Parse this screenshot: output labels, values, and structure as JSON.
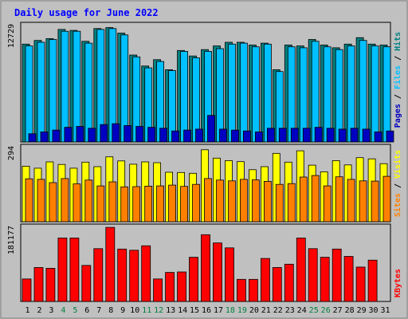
{
  "chart_data": [
    {
      "type": "bar",
      "title": "Daily usage for June 2022",
      "x": [
        "1",
        "2",
        "3",
        "4",
        "5",
        "6",
        "7",
        "8",
        "9",
        "10",
        "11",
        "12",
        "13",
        "14",
        "15",
        "16",
        "17",
        "18",
        "19",
        "20",
        "21",
        "22",
        "23",
        "24",
        "25",
        "26",
        "27",
        "28",
        "29",
        "30",
        "31"
      ],
      "weekend_days": [
        "4",
        "5",
        "11",
        "12",
        "18",
        "19",
        "25",
        "26"
      ],
      "y_tick_label": "12729",
      "ymax": 12729,
      "series": [
        {
          "name": "Hits",
          "color": "#008080",
          "values": [
            10700,
            11100,
            11300,
            12300,
            12200,
            11000,
            12400,
            12500,
            11900,
            9500,
            8300,
            9000,
            7900,
            10000,
            9400,
            10100,
            10500,
            10900,
            10900,
            10600,
            10800,
            7900,
            10600,
            10500,
            11200,
            10600,
            10300,
            10700,
            11400,
            10700,
            10600
          ]
        },
        {
          "name": "Files",
          "color": "#00c0ff",
          "values": [
            10500,
            10900,
            11200,
            12100,
            12100,
            10800,
            12300,
            12400,
            11700,
            9300,
            8100,
            8800,
            7800,
            9900,
            9200,
            9900,
            10200,
            10700,
            10800,
            10400,
            10700,
            7700,
            10400,
            10300,
            11000,
            10400,
            10100,
            10500,
            11100,
            10500,
            10400
          ]
        },
        {
          "name": "Pages",
          "color": "#0000c0",
          "values": [
            900,
            1100,
            1300,
            1600,
            1700,
            1500,
            1900,
            2000,
            1800,
            1700,
            1600,
            1500,
            1200,
            1300,
            1400,
            2900,
            1400,
            1300,
            1200,
            1100,
            1500,
            1500,
            1500,
            1500,
            1600,
            1500,
            1400,
            1500,
            1400,
            1100,
            1200
          ]
        }
      ]
    },
    {
      "type": "bar",
      "x": [
        "1",
        "2",
        "3",
        "4",
        "5",
        "6",
        "7",
        "8",
        "9",
        "10",
        "11",
        "12",
        "13",
        "14",
        "15",
        "16",
        "17",
        "18",
        "19",
        "20",
        "21",
        "22",
        "23",
        "24",
        "25",
        "26",
        "27",
        "28",
        "29",
        "30",
        "31"
      ],
      "y_tick_label": "294",
      "ymax": 294,
      "series": [
        {
          "name": "Visits",
          "color": "#ffff00",
          "values": [
            220,
            212,
            237,
            227,
            212,
            236,
            218,
            257,
            241,
            228,
            237,
            234,
            196,
            195,
            192,
            285,
            252,
            242,
            238,
            206,
            218,
            271,
            236,
            281,
            224,
            198,
            242,
            225,
            254,
            249,
            230
          ]
        },
        {
          "name": "Sites",
          "color": "#ff8000",
          "values": [
            170,
            168,
            155,
            171,
            150,
            165,
            142,
            158,
            138,
            139,
            141,
            142,
            145,
            140,
            148,
            171,
            165,
            162,
            168,
            166,
            160,
            148,
            151,
            177,
            183,
            142,
            178,
            168,
            162,
            161,
            180
          ]
        }
      ]
    },
    {
      "type": "bar",
      "x": [
        "1",
        "2",
        "3",
        "4",
        "5",
        "6",
        "7",
        "8",
        "9",
        "10",
        "11",
        "12",
        "13",
        "14",
        "15",
        "16",
        "17",
        "18",
        "19",
        "20",
        "21",
        "22",
        "23",
        "24",
        "25",
        "26",
        "27",
        "28",
        "29",
        "30",
        "31"
      ],
      "y_tick_label": "181177",
      "ymax": 181177,
      "series": [
        {
          "name": "KBytes",
          "color": "#ff0000",
          "values": [
            55000,
            83000,
            81000,
            155000,
            155000,
            88000,
            129000,
            181000,
            128000,
            125000,
            136000,
            55000,
            71000,
            72000,
            108000,
            163000,
            143000,
            131000,
            54000,
            54000,
            105000,
            83000,
            91000,
            155000,
            129000,
            108000,
            128000,
            110000,
            84000,
            101000,
            0
          ]
        }
      ]
    }
  ],
  "legend_separator": " / "
}
